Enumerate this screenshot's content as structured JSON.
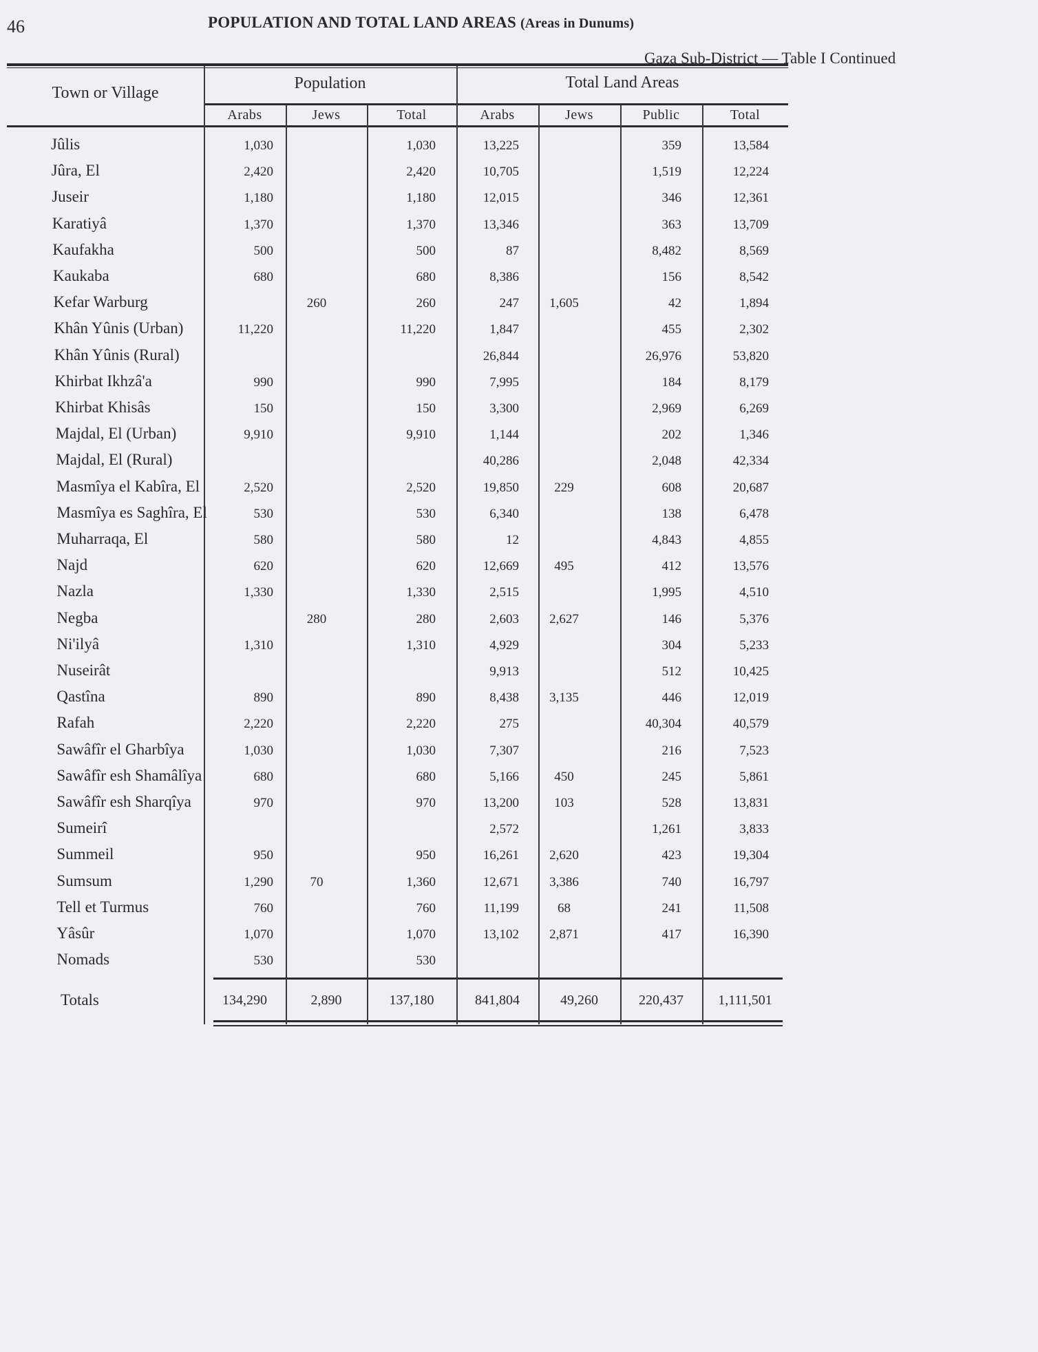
{
  "page_number": "46",
  "title": "POPULATION AND TOTAL LAND AREAS",
  "title_note": "(Areas in Dunums)",
  "subtitle": "Gaza Sub-District — Table I Continued",
  "table": {
    "name_header": "Town or Village",
    "group_headers": [
      "Population",
      "Total Land Areas"
    ],
    "columns": [
      "Arabs",
      "Jews",
      "Total",
      "Arabs",
      "Jews",
      "Public",
      "Total"
    ],
    "rows": [
      [
        "Jûlis",
        "1,030",
        "",
        "1,030",
        "13,225",
        "",
        "359",
        "13,584"
      ],
      [
        "Jûra, El",
        "2,420",
        "",
        "2,420",
        "10,705",
        "",
        "1,519",
        "12,224"
      ],
      [
        "Juseir",
        "1,180",
        "",
        "1,180",
        "12,015",
        "",
        "346",
        "12,361"
      ],
      [
        "Karatiyâ",
        "1,370",
        "",
        "1,370",
        "13,346",
        "",
        "363",
        "13,709"
      ],
      [
        "Kaufakha",
        "500",
        "",
        "500",
        "87",
        "",
        "8,482",
        "8,569"
      ],
      [
        "Kaukaba",
        "680",
        "",
        "680",
        "8,386",
        "",
        "156",
        "8,542"
      ],
      [
        "Kefar Warburg",
        "",
        "260",
        "260",
        "247",
        "1,605",
        "42",
        "1,894"
      ],
      [
        "Khân Yûnis (Urban)",
        "11,220",
        "",
        "11,220",
        "1,847",
        "",
        "455",
        "2,302"
      ],
      [
        "Khân Yûnis (Rural)",
        "",
        "",
        "",
        "26,844",
        "",
        "26,976",
        "53,820"
      ],
      [
        "Khirbat Ikhzâ'a",
        "990",
        "",
        "990",
        "7,995",
        "",
        "184",
        "8,179"
      ],
      [
        "Khirbat Khisâs",
        "150",
        "",
        "150",
        "3,300",
        "",
        "2,969",
        "6,269"
      ],
      [
        "Majdal, El (Urban)",
        "9,910",
        "",
        "9,910",
        "1,144",
        "",
        "202",
        "1,346"
      ],
      [
        "Majdal, El (Rural)",
        "",
        "",
        "",
        "40,286",
        "",
        "2,048",
        "42,334"
      ],
      [
        "Masmîya el Kabîra, El",
        "2,520",
        "",
        "2,520",
        "19,850",
        "229",
        "608",
        "20,687"
      ],
      [
        "Masmîya es Saghîra, El",
        "530",
        "",
        "530",
        "6,340",
        "",
        "138",
        "6,478"
      ],
      [
        "Muharraqa, El",
        "580",
        "",
        "580",
        "12",
        "",
        "4,843",
        "4,855"
      ],
      [
        "Najd",
        "620",
        "",
        "620",
        "12,669",
        "495",
        "412",
        "13,576"
      ],
      [
        "Nazla",
        "1,330",
        "",
        "1,330",
        "2,515",
        "",
        "1,995",
        "4,510"
      ],
      [
        "Negba",
        "",
        "280",
        "280",
        "2,603",
        "2,627",
        "146",
        "5,376"
      ],
      [
        "Ni'ilyâ",
        "1,310",
        "",
        "1,310",
        "4,929",
        "",
        "304",
        "5,233"
      ],
      [
        "Nuseirât",
        "",
        "",
        "",
        "9,913",
        "",
        "512",
        "10,425"
      ],
      [
        "Qastîna",
        "890",
        "",
        "890",
        "8,438",
        "3,135",
        "446",
        "12,019"
      ],
      [
        "Rafah",
        "2,220",
        "",
        "2,220",
        "275",
        "",
        "40,304",
        "40,579"
      ],
      [
        "Sawâfîr el Gharbîya",
        "1,030",
        "",
        "1,030",
        "7,307",
        "",
        "216",
        "7,523"
      ],
      [
        "Sawâfîr esh Shamâlîya",
        "680",
        "",
        "680",
        "5,166",
        "450",
        "245",
        "5,861"
      ],
      [
        "Sawâfîr esh Sharqîya",
        "970",
        "",
        "970",
        "13,200",
        "103",
        "528",
        "13,831"
      ],
      [
        "Sumeirî",
        "",
        "",
        "",
        "2,572",
        "",
        "1,261",
        "3,833"
      ],
      [
        "Summeil",
        "950",
        "",
        "950",
        "16,261",
        "2,620",
        "423",
        "19,304"
      ],
      [
        "Sumsum",
        "1,290",
        "70",
        "1,360",
        "12,671",
        "3,386",
        "740",
        "16,797"
      ],
      [
        "Tell et Turmus",
        "760",
        "",
        "760",
        "11,199",
        "68",
        "241",
        "11,508"
      ],
      [
        "Yâsûr",
        "1,070",
        "",
        "1,070",
        "13,102",
        "2,871",
        "417",
        "16,390"
      ],
      [
        "Nomads",
        "530",
        "",
        "530",
        "",
        "",
        "",
        ""
      ]
    ],
    "totals": [
      "Totals",
      "134,290",
      "2,890",
      "137,180",
      "841,804",
      "49,260",
      "220,437",
      "1,111,501"
    ]
  }
}
